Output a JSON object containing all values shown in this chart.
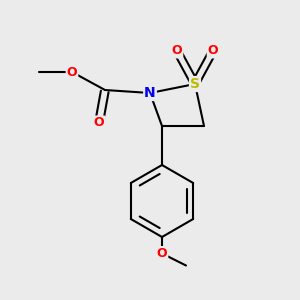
{
  "bg_color": "#ebebeb",
  "atom_colors": {
    "C": "#000000",
    "N": "#0000ee",
    "O": "#ff0000",
    "S": "#bbbb00"
  },
  "bond_color": "#000000",
  "bond_width": 1.5
}
